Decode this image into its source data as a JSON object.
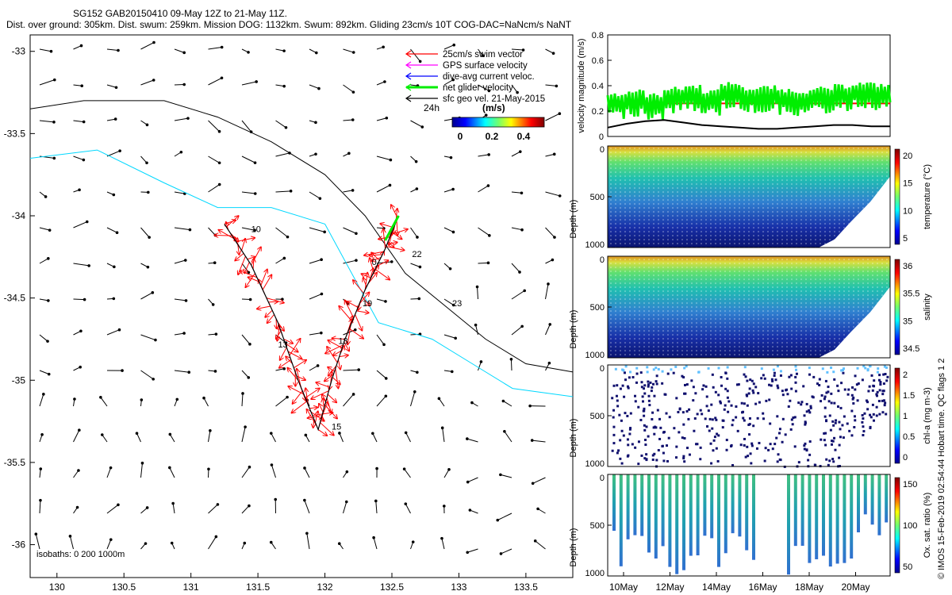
{
  "header": {
    "line1": "SG152 GAB20150410 09-May 12Z to 21-May 11Z.",
    "line2": "Dist. over ground: 305km. Dist. swum: 259km. Mission DOG: 1132km. Swum: 892km. Gliding 23cm/s 10T COG-DAC=NaNcm/s NaNT"
  },
  "credit": "© IMOS 15-Feb-2019 02:54:44 Hobart time. QC flags 1 2",
  "chart_data": [
    {
      "type": "scatter",
      "role": "map",
      "xlim": [
        129.8,
        133.85
      ],
      "ylim": [
        -36.2,
        -32.9
      ],
      "x_ticks": [
        130,
        130.5,
        131,
        131.5,
        132,
        132.5,
        133,
        133.5
      ],
      "x_tick_labels": [
        "130",
        "130.5",
        "131",
        "131.5",
        "132",
        "132.5",
        "133",
        "133.5"
      ],
      "y_ticks": [
        -33,
        -33.5,
        -34,
        -34.5,
        -35,
        -35.5,
        -36
      ],
      "y_tick_labels": [
        "-33",
        "-33.5",
        "-34",
        "-34.5",
        "-35",
        "-35.5",
        "-36"
      ],
      "legend": {
        "position": "top-right",
        "entries": [
          {
            "label": "25cm/s swim vector",
            "color": "#ff0000"
          },
          {
            "label": "GPS surface velocity",
            "color": "#ff00ff"
          },
          {
            "label": "dive-avg current veloc.",
            "color": "#0000ff"
          },
          {
            "label": "net glider velocity",
            "color": "#00ee00"
          },
          {
            "label": "sfc geo vel. 21-May-2015",
            "color": "#000000"
          }
        ],
        "extra_label": "24h"
      },
      "colorbar": {
        "title": "(m/s)",
        "ticks": [
          "0",
          "0.2",
          "0.4"
        ]
      },
      "isobath_note": "isobaths: 0   200   1000m",
      "track": {
        "lon": [
          131.25,
          131.45,
          131.65,
          131.8,
          131.95,
          132.05,
          132.15,
          132.3,
          132.45,
          132.55
        ],
        "lat": [
          -34.05,
          -34.3,
          -34.65,
          -35.0,
          -35.3,
          -35.0,
          -34.75,
          -34.45,
          -34.2,
          -34.0
        ]
      },
      "day_labels": [
        {
          "text": "10",
          "lon": 131.45,
          "lat": -34.1
        },
        {
          "text": "13",
          "lon": 131.65,
          "lat": -34.8
        },
        {
          "text": "15",
          "lon": 132.05,
          "lat": -35.3
        },
        {
          "text": "18",
          "lon": 132.1,
          "lat": -34.78
        },
        {
          "text": "19",
          "lon": 132.28,
          "lat": -34.55
        },
        {
          "text": "0",
          "lon": 132.35,
          "lat": -34.3
        },
        {
          "text": "22",
          "lon": 132.65,
          "lat": -34.25
        },
        {
          "text": "23",
          "lon": 132.95,
          "lat": -34.55
        }
      ],
      "isobath_200m": {
        "lon": [
          129.8,
          130.2,
          130.8,
          131.2,
          131.6,
          132.0,
          132.3,
          132.6,
          132.9,
          133.2,
          133.5,
          133.85
        ],
        "lat": [
          -33.35,
          -33.3,
          -33.3,
          -33.4,
          -33.55,
          -33.75,
          -34.0,
          -34.35,
          -34.55,
          -34.75,
          -34.9,
          -34.95
        ]
      },
      "isobath_1000m": {
        "lon": [
          129.8,
          130.3,
          130.8,
          131.2,
          131.6,
          132.0,
          132.4,
          132.8,
          133.1,
          133.4,
          133.85
        ],
        "lat": [
          -33.65,
          -33.6,
          -33.8,
          -33.95,
          -33.95,
          -34.05,
          -34.65,
          -34.75,
          -34.9,
          -35.05,
          -35.1
        ]
      }
    },
    {
      "type": "line",
      "role": "velocity",
      "ylabel": "velocity magnitude (m/s)",
      "ylim": [
        0,
        0.8
      ],
      "y_ticks": [
        "0",
        "0.2",
        "0.4",
        "0.6",
        "0.8"
      ],
      "series": [
        {
          "color": "#ff0000",
          "values": [
            0.26,
            0.26,
            0.26,
            0.26,
            0.26,
            0.26,
            0.26,
            0.26,
            0.26,
            0.26,
            0.26,
            0.26,
            0.26,
            0.26,
            0.26,
            0.26
          ]
        },
        {
          "color": "#00ee00",
          "values": [
            0.28,
            0.3,
            0.27,
            0.32,
            0.34,
            0.3,
            0.36,
            0.32,
            0.33,
            0.31,
            0.3,
            0.32,
            0.34,
            0.36,
            0.35,
            0.38
          ]
        },
        {
          "color": "#000000",
          "values": [
            0.07,
            0.1,
            0.12,
            0.13,
            0.11,
            0.09,
            0.08,
            0.07,
            0.06,
            0.06,
            0.07,
            0.08,
            0.09,
            0.09,
            0.08,
            0.08
          ]
        }
      ]
    },
    {
      "type": "heatmap",
      "role": "temperature",
      "ylabel": "Depth (m)",
      "cbar_label": "temperature (°C)",
      "cbar_ticks": [
        "5",
        "10",
        "15",
        "20"
      ],
      "ylim": [
        0,
        1000
      ],
      "y_ticks": [
        "0",
        "500",
        "1000"
      ]
    },
    {
      "type": "heatmap",
      "role": "salinity",
      "ylabel": "Depth (m)",
      "cbar_label": "salinity",
      "cbar_ticks": [
        "34.5",
        "35",
        "35.5",
        "36"
      ],
      "ylim": [
        0,
        1000
      ],
      "y_ticks": [
        "0",
        "500",
        "1000"
      ]
    },
    {
      "type": "heatmap",
      "role": "chla",
      "ylabel": "Depth (m)",
      "cbar_label": "chl-a (mg m-3)",
      "cbar_ticks": [
        "0",
        "0.5",
        "1",
        "1.5",
        "2"
      ],
      "ylim": [
        0,
        1000
      ],
      "y_ticks": [
        "0",
        "500",
        "1000"
      ]
    },
    {
      "type": "heatmap",
      "role": "oxygen",
      "ylabel": "Depth (m)",
      "cbar_label": "Ox. sat. ratio (%)",
      "cbar_ticks": [
        "50",
        "100",
        "150"
      ],
      "ylim": [
        0,
        1000
      ],
      "y_ticks": [
        "0",
        "500",
        "1000"
      ],
      "x_tick_labels": [
        "10May",
        "12May",
        "14May",
        "16May",
        "18May",
        "20May"
      ]
    }
  ]
}
